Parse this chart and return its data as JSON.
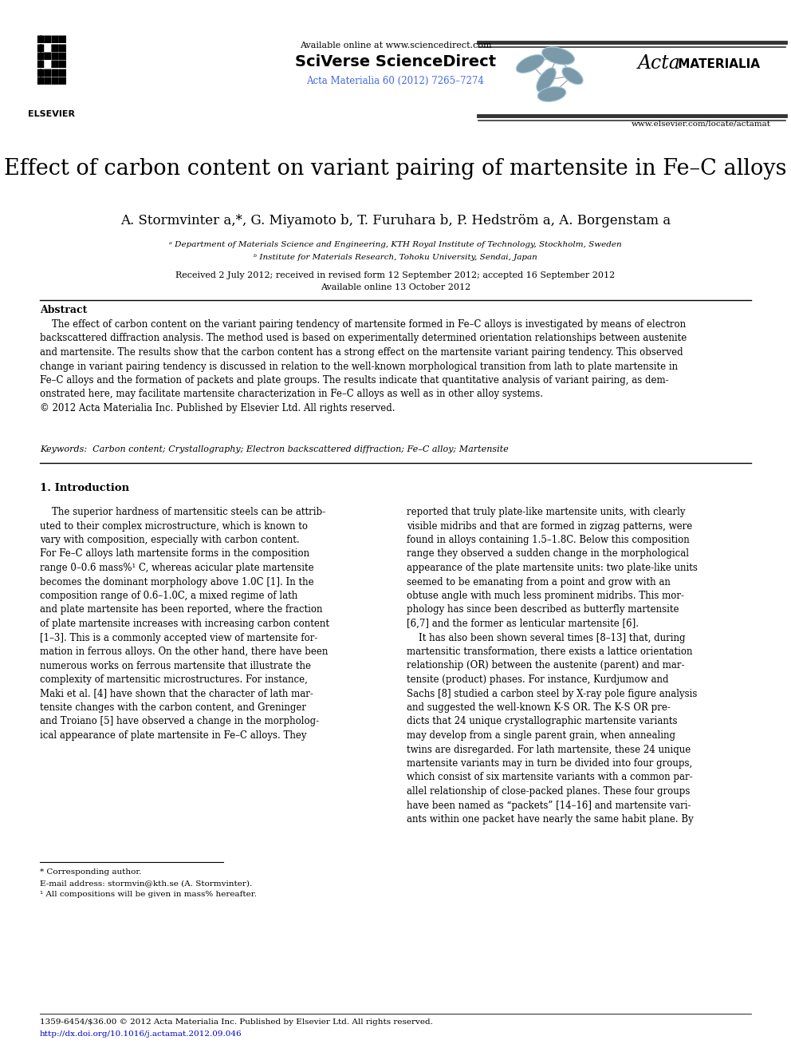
{
  "title": "Effect of carbon content on variant pairing of martensite in Fe–C alloys",
  "author_line": "A. Stormvinter a,*, G. Miyamoto b, T. Furuhara b, P. Hedström a, A. Borgenstam a",
  "journal_line": "Acta Materialia 60 (2012) 7265–7274",
  "available_online": "Available online at www.sciencedirect.com",
  "sciverse": "SciVerse ScienceDirect",
  "elsevier_url": "www.elsevier.com/locate/actamat",
  "affil_a": "ᵃ Department of Materials Science and Engineering, KTH Royal Institute of Technology, Stockholm, Sweden",
  "affil_b": "ᵇ Institute for Materials Research, Tohoku University, Sendai, Japan",
  "received": "Received 2 July 2012; received in revised form 12 September 2012; accepted 16 September 2012",
  "available": "Available online 13 October 2012",
  "abstract_title": "Abstract",
  "abstract_text": "    The effect of carbon content on the variant pairing tendency of martensite formed in Fe–C alloys is investigated by means of electron\nbackscattered diffraction analysis. The method used is based on experimentally determined orientation relationships between austenite\nand martensite. The results show that the carbon content has a strong effect on the martensite variant pairing tendency. This observed\nchange in variant pairing tendency is discussed in relation to the well-known morphological transition from lath to plate martensite in\nFe–C alloys and the formation of packets and plate groups. The results indicate that quantitative analysis of variant pairing, as dem-\nonstrated here, may facilitate martensite characterization in Fe–C alloys as well as in other alloy systems.\n© 2012 Acta Materialia Inc. Published by Elsevier Ltd. All rights reserved.",
  "keywords": "Keywords:  Carbon content; Crystallography; Electron backscattered diffraction; Fe–C alloy; Martensite",
  "section1_title": "1. Introduction",
  "col1_para1": "    The superior hardness of martensitic steels can be attrib-\nuted to their complex microstructure, which is known to\nvary with composition, especially with carbon content.\nFor Fe–C alloys lath martensite forms in the composition\nrange 0–0.6 mass%¹ C, whereas acicular plate martensite\nbecomes the dominant morphology above 1.0C [1]. In the\ncomposition range of 0.6–1.0C, a mixed regime of lath\nand plate martensite has been reported, where the fraction\nof plate martensite increases with increasing carbon content\n[1–3]. This is a commonly accepted view of martensite for-\nmation in ferrous alloys. On the other hand, there have been\nnumerous works on ferrous martensite that illustrate the\ncomplexity of martensitic microstructures. For instance,\nMaki et al. [4] have shown that the character of lath mar-\ntensite changes with the carbon content, and Greninger\nand Troiano [5] have observed a change in the morpholog-\nical appearance of plate martensite in Fe–C alloys. They",
  "col2_para1": "reported that truly plate-like martensite units, with clearly\nvisible midribs and that are formed in zigzag patterns, were\nfound in alloys containing 1.5–1.8C. Below this composition\nrange they observed a sudden change in the morphological\nappearance of the plate martensite units: two plate-like units\nseemed to be emanating from a point and grow with an\nobtuse angle with much less prominent midribs. This mor-\nphology has since been described as butterfly martensite\n[6,7] and the former as lenticular martensite [6].\n    It has also been shown several times [8–13] that, during\nmartensitic transformation, there exists a lattice orientation\nrelationship (OR) between the austenite (parent) and mar-\ntensite (product) phases. For instance, Kurdjumow and\nSachs [8] studied a carbon steel by X-ray pole figure analysis\nand suggested the well-known K-S OR. The K-S OR pre-\ndicts that 24 unique crystallographic martensite variants\nmay develop from a single parent grain, when annealing\ntwins are disregarded. For lath martensite, these 24 unique\nmartensite variants may in turn be divided into four groups,\nwhich consist of six martensite variants with a common par-\nallel relationship of close-packed planes. These four groups\nhave been named as “packets” [14–16] and martensite vari-\nants within one packet have nearly the same habit plane. By",
  "footnote_star": "* Corresponding author.",
  "footnote_email": "E-mail address: stormvin@kth.se (A. Stormvinter).",
  "footnote_1": "¹ All compositions will be given in mass% hereafter.",
  "bottom_line1": "1359-6454/$36.00 © 2012 Acta Materialia Inc. Published by Elsevier Ltd. All rights reserved.",
  "bottom_line2": "http://dx.doi.org/10.1016/j.actamat.2012.09.046",
  "bg_color": "#ffffff",
  "link_color": "#4169e1",
  "ref_color": "#0000cc"
}
